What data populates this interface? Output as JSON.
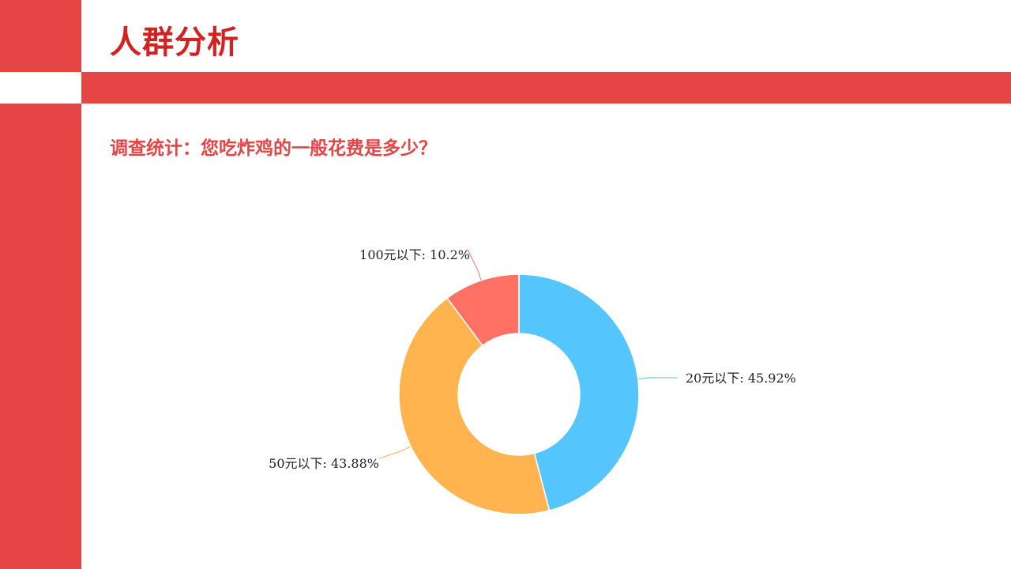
{
  "slide": {
    "title": "人群分析",
    "question": "调查统计：您吃炸鸡的一般花费是多少？"
  },
  "colors": {
    "accent": "#e64545",
    "title": "#d42121"
  },
  "chart_data": {
    "type": "pie",
    "donut": true,
    "title": "",
    "slices": [
      {
        "name": "20元以下",
        "value": 45.92,
        "label": "20元以下: 45.92%",
        "color": "#55c6fd"
      },
      {
        "name": "50元以下",
        "value": 43.88,
        "label": "50元以下: 43.88%",
        "color": "#ffb44f"
      },
      {
        "name": "100元以下",
        "value": 10.2,
        "label": "100元以下: 10.2%",
        "color": "#ff7065"
      }
    ]
  }
}
